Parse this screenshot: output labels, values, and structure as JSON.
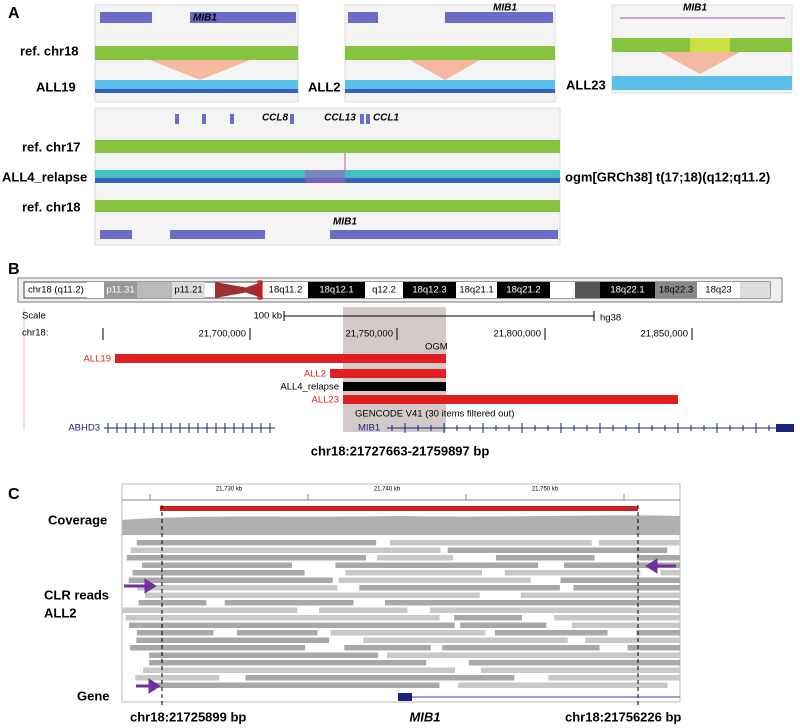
{
  "panel_a": {
    "label": "A",
    "top": [
      {
        "gene": "MIB1",
        "reference": "ref. chr18",
        "sample": "ALL19"
      },
      {
        "gene": "MIB1",
        "sample": "ALL2"
      },
      {
        "gene": "MIB1",
        "sample": "ALL23"
      }
    ],
    "bottom": {
      "genes": [
        "CCL8",
        "CCL13",
        "CCL1"
      ],
      "reference_top": "ref. chr17",
      "sample": "ALL4_relapse",
      "reference_bottom": "ref. chr18",
      "gene": "MIB1",
      "annotation": "ogm[GRCh38] t(17;18)(q12;q11.2)"
    }
  },
  "panel_b": {
    "label": "B",
    "chromosome": "chr18 (q11.2)",
    "bands": [
      "p11.31",
      "p11.21",
      "18q11.2",
      "18q12.1",
      "q12.2",
      "18q12.3",
      "18q21.1",
      "18q21.2",
      "18q22.1",
      "18q22.3",
      "18q23"
    ],
    "scale_label": "Scale",
    "scale": "100 kb",
    "assembly": "hg38",
    "axis_label": "chr18:",
    "ticks": [
      "21,700,000",
      "21,750,000",
      "21,800,000",
      "21,850,000"
    ],
    "highlight": "OGM",
    "samples": [
      "ALL19",
      "ALL2",
      "ALL4_relapse",
      "ALL23"
    ],
    "track": "GENCODE V41 (30 items filtered out)",
    "genes": [
      "ABHD3",
      "MIB1"
    ],
    "region": "chr18:21727663-21759897 bp"
  },
  "panel_c": {
    "label": "C",
    "tracks": [
      "Coverage",
      "CLR reads",
      "ALL2",
      "Gene"
    ],
    "ticks": [
      "21,730 kb",
      "21,740 kb",
      "21,750 kb"
    ],
    "left_breakpoint": "chr18:21725899 bp",
    "gene": "MIB1",
    "right_breakpoint": "chr18:21756226 bp"
  }
}
